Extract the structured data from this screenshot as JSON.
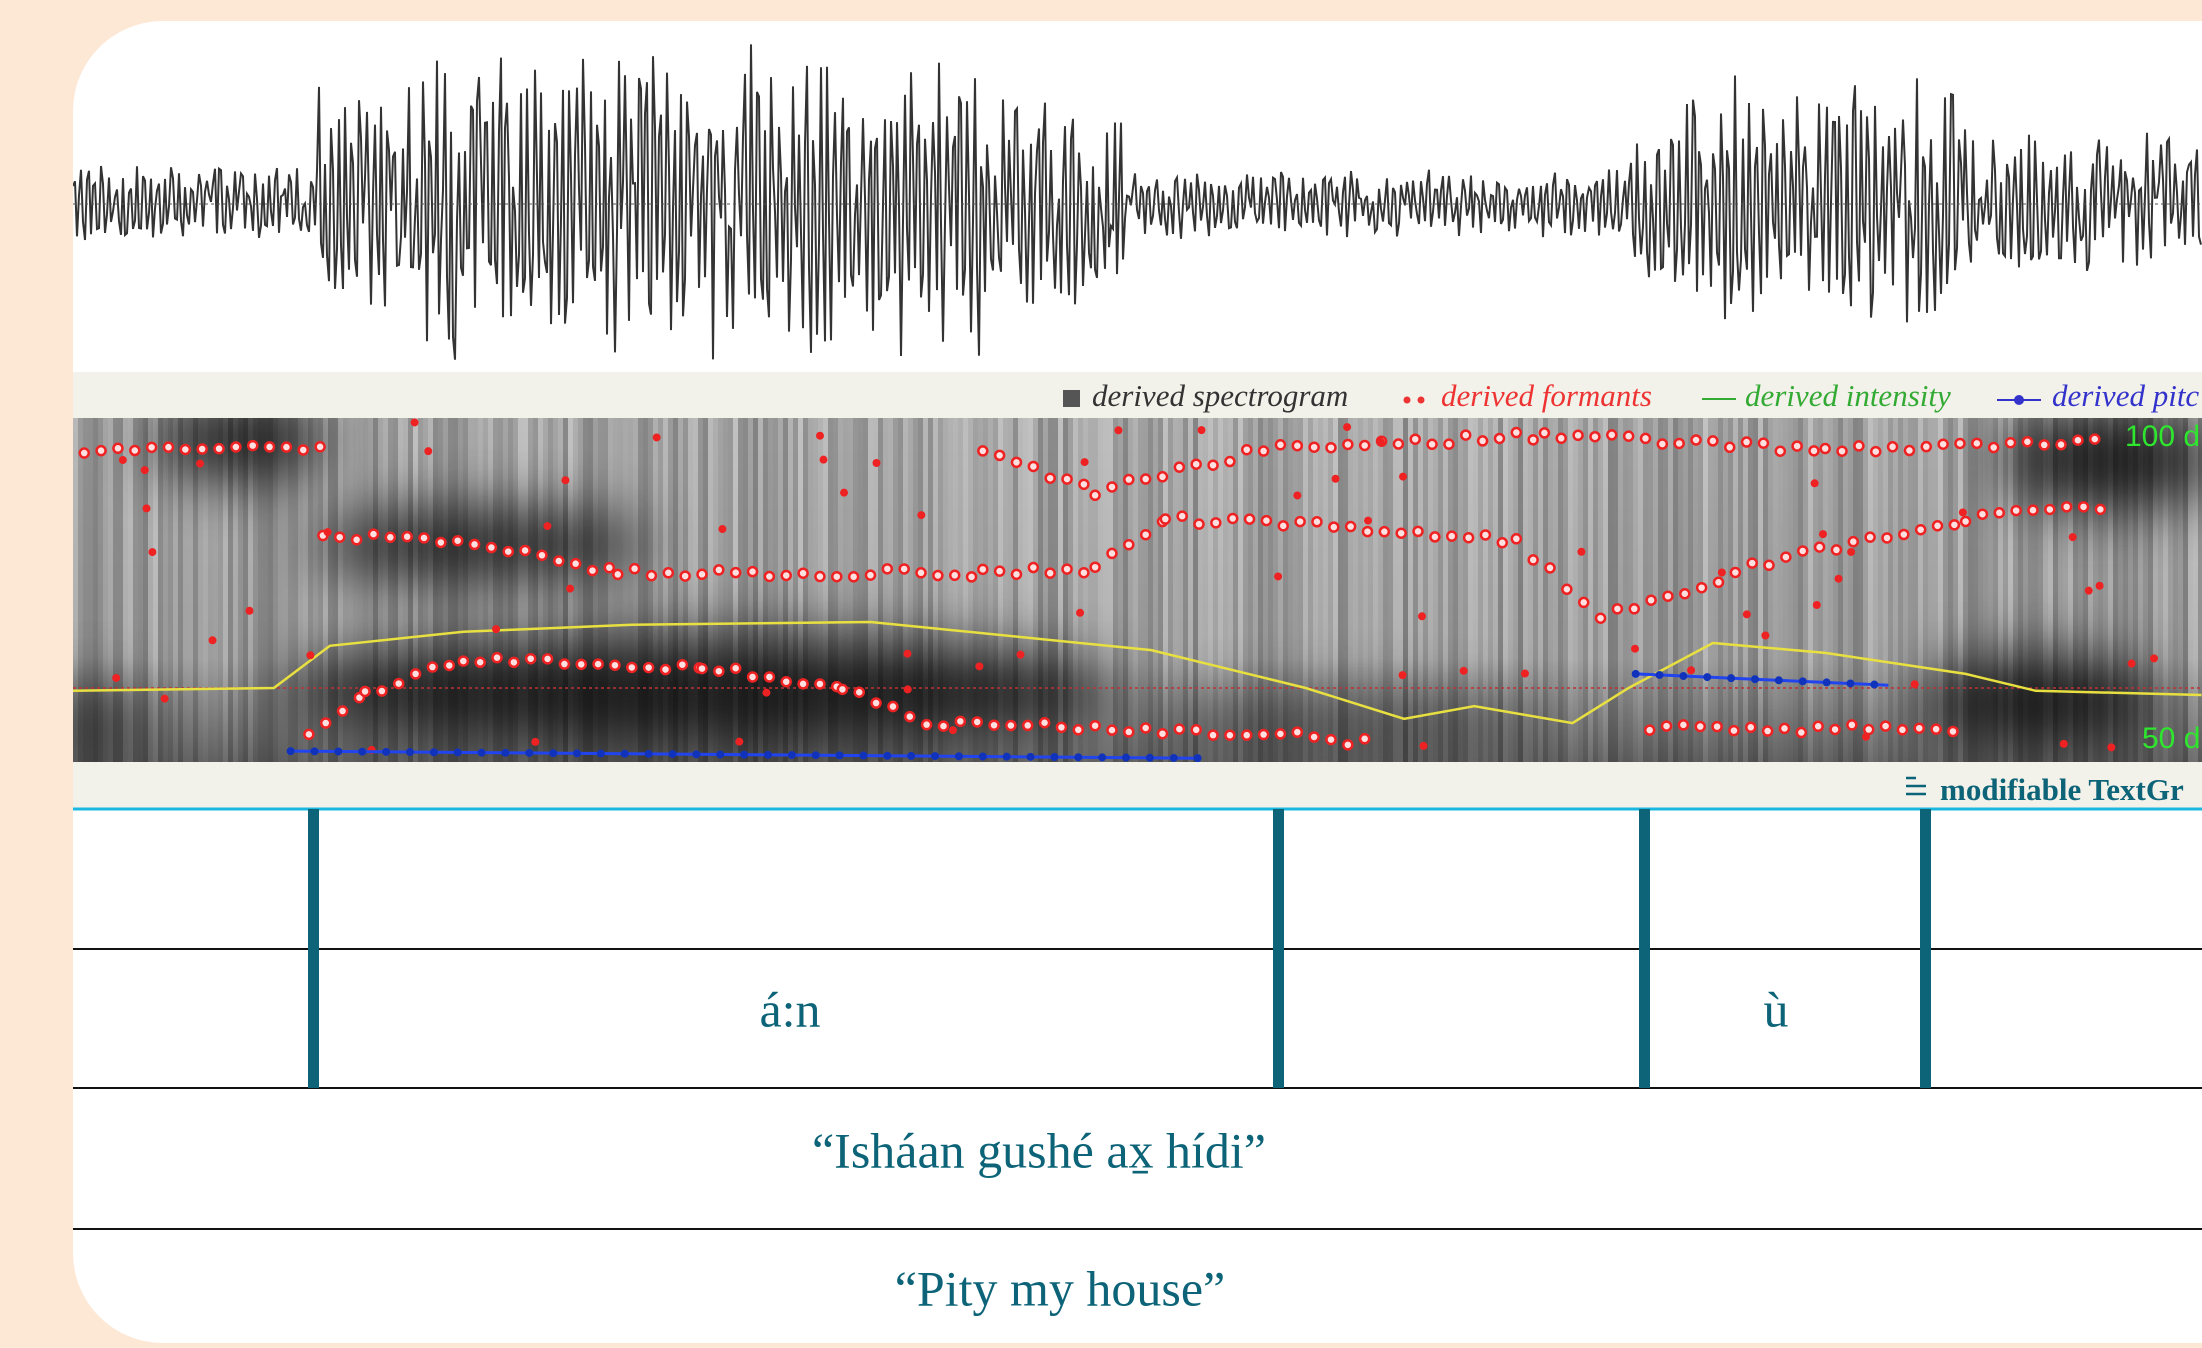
{
  "legend": {
    "spectrogram": "derived spectrogram",
    "formants": "derived formants",
    "intensity": "derived intensity",
    "pitch": "derived pitc"
  },
  "spectrogram": {
    "top_label": "100 d",
    "bottom_label": "50 d"
  },
  "textgrid": {
    "title": "modifiable TextGr",
    "rows": [
      {
        "intervals": [
          "á:n",
          "ù"
        ]
      },
      {
        "intervals": [
          "“Isháan gushé ax̱ hídi”"
        ]
      },
      {
        "intervals": [
          "“Pity my house”"
        ]
      }
    ]
  }
}
